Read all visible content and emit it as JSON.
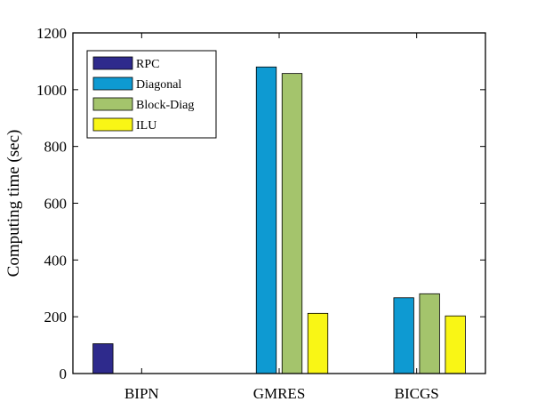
{
  "chart_data": {
    "type": "bar",
    "title": "",
    "xlabel": "",
    "ylabel": "Computing time (sec)",
    "ylim": [
      0,
      1200
    ],
    "yticks": [
      0,
      200,
      400,
      600,
      800,
      1000,
      1200
    ],
    "categories": [
      "BIPN",
      "GMRES",
      "BICGS"
    ],
    "legend_position": "top-left",
    "grid": false,
    "series": [
      {
        "name": "RPC",
        "color": "#2e2a8c",
        "values": [
          105,
          null,
          null
        ]
      },
      {
        "name": "Diagonal",
        "color": "#0e9ad2",
        "values": [
          null,
          1080,
          267
        ]
      },
      {
        "name": "Block-Diag",
        "color": "#a4c46c",
        "values": [
          null,
          1057,
          281
        ]
      },
      {
        "name": "ILU",
        "color": "#f9f615",
        "values": [
          null,
          212,
          203
        ]
      }
    ]
  }
}
